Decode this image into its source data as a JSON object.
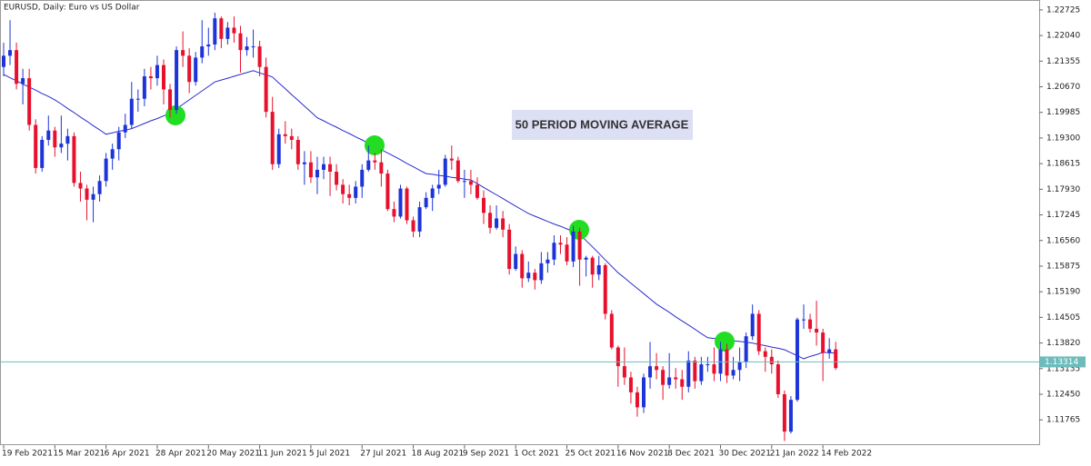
{
  "chart_data": {
    "type": "candlestick",
    "title": "EURUSD, Daily:  Euro vs US Dollar",
    "annotation": "50 PERIOD MOVING AVERAGE",
    "up_color": "#1c34d8",
    "down_color": "#e8112d",
    "categories": [
      "19 Feb 2021",
      null,
      null,
      null,
      null,
      null,
      null,
      null,
      "15 Mar 2021",
      null,
      null,
      null,
      null,
      null,
      null,
      null,
      "6 Apr 2021",
      null,
      null,
      null,
      null,
      null,
      null,
      null,
      "28 Apr 2021",
      null,
      null,
      null,
      null,
      null,
      null,
      null,
      "20 May 2021",
      null,
      null,
      null,
      null,
      null,
      null,
      null,
      "11 Jun 2021",
      null,
      null,
      null,
      null,
      null,
      null,
      null,
      "5 Jul 2021",
      null,
      null,
      null,
      null,
      null,
      null,
      null,
      "27 Jul 2021",
      null,
      null,
      null,
      null,
      null,
      null,
      null,
      "18 Aug 2021",
      null,
      null,
      null,
      null,
      null,
      null,
      null,
      "9 Sep 2021",
      null,
      null,
      null,
      null,
      null,
      null,
      null,
      "1 Oct 2021",
      null,
      null,
      null,
      null,
      null,
      null,
      null,
      "25 Oct 2021",
      null,
      null,
      null,
      null,
      null,
      null,
      null,
      "16 Nov 2021",
      null,
      null,
      null,
      null,
      null,
      null,
      null,
      "8 Dec 2021",
      null,
      null,
      null,
      null,
      null,
      null,
      null,
      "30 Dec 2021",
      null,
      null,
      null,
      null,
      null,
      null,
      null,
      "21 Jan 2022",
      null,
      null,
      null,
      null,
      null,
      null,
      null,
      "14 Feb 2022",
      null,
      null
    ],
    "open": [
      1.212,
      1.215,
      1.2165,
      1.2075,
      1.209,
      1.1965,
      1.185,
      1.1925,
      1.195,
      1.1905,
      1.1915,
      1.1935,
      1.181,
      1.1795,
      1.1765,
      1.178,
      1.1815,
      1.1875,
      1.19,
      1.1945,
      1.1965,
      1.2035,
      1.2035,
      1.2095,
      1.209,
      1.2125,
      1.206,
      1.2005,
      1.2165,
      1.215,
      1.208,
      1.2145,
      1.2175,
      1.218,
      1.225,
      1.2195,
      1.2225,
      1.221,
      1.2165,
      1.2175,
      1.2175,
      1.212,
      1.2,
      1.186,
      1.194,
      1.1935,
      1.1925,
      1.186,
      1.1865,
      1.1825,
      1.1845,
      1.186,
      1.184,
      1.1805,
      1.178,
      1.177,
      1.18,
      1.1845,
      1.187,
      1.1865,
      1.1835,
      1.174,
      1.172,
      1.1795,
      1.171,
      1.168,
      1.1745,
      1.177,
      1.1795,
      1.1805,
      1.1875,
      1.187,
      1.1815,
      1.1815,
      1.1805,
      1.177,
      1.173,
      1.169,
      1.1715,
      1.1685,
      1.158,
      1.162,
      1.1555,
      1.157,
      1.155,
      1.1595,
      1.1605,
      1.165,
      1.1645,
      1.16,
      1.168,
      1.1605,
      1.161,
      1.1565,
      1.159,
      1.146,
      1.137,
      1.132,
      1.129,
      1.125,
      1.121,
      1.129,
      1.132,
      1.131,
      1.127,
      1.129,
      1.1285,
      1.1265,
      1.1335,
      1.128,
      1.1325,
      1.1325,
      1.13,
      1.1365,
      1.1295,
      1.131,
      1.133,
      1.14,
      1.146,
      1.136,
      1.1345,
      1.1325,
      1.1245,
      1.1145,
      1.123,
      1.1445,
      1.1445,
      1.142,
      1.141,
      1.1355,
      1.1365
    ],
    "high": [
      1.2185,
      1.2245,
      1.2185,
      1.2115,
      1.2115,
      1.198,
      1.1935,
      1.199,
      1.196,
      1.199,
      1.1955,
      1.1945,
      1.184,
      1.1805,
      1.18,
      1.183,
      1.189,
      1.1915,
      1.196,
      1.1995,
      1.208,
      1.206,
      1.2115,
      1.212,
      1.215,
      1.214,
      1.2075,
      1.2175,
      1.2215,
      1.217,
      1.216,
      1.2245,
      1.2225,
      1.2265,
      1.2255,
      1.224,
      1.2255,
      1.223,
      1.22,
      1.222,
      1.219,
      1.2145,
      1.204,
      1.1955,
      1.1975,
      1.1955,
      1.1935,
      1.1895,
      1.1895,
      1.188,
      1.188,
      1.188,
      1.186,
      1.182,
      1.1805,
      1.1815,
      1.186,
      1.191,
      1.189,
      1.19,
      1.1845,
      1.176,
      1.1805,
      1.18,
      1.172,
      1.176,
      1.1785,
      1.1805,
      1.1845,
      1.1885,
      1.191,
      1.188,
      1.1845,
      1.1845,
      1.1825,
      1.179,
      1.175,
      1.175,
      1.1735,
      1.17,
      1.164,
      1.163,
      1.16,
      1.158,
      1.1625,
      1.1625,
      1.167,
      1.167,
      1.1665,
      1.1695,
      1.169,
      1.1615,
      1.1615,
      1.1615,
      1.1595,
      1.147,
      1.1375,
      1.137,
      1.1305,
      1.1265,
      1.13,
      1.1385,
      1.1355,
      1.132,
      1.1355,
      1.1315,
      1.131,
      1.136,
      1.1345,
      1.1345,
      1.1345,
      1.137,
      1.1385,
      1.138,
      1.1345,
      1.137,
      1.141,
      1.1485,
      1.147,
      1.137,
      1.1365,
      1.1335,
      1.1255,
      1.124,
      1.145,
      1.1485,
      1.146,
      1.1495,
      1.142,
      1.1395,
      1.1385
    ],
    "low": [
      1.2095,
      1.2125,
      1.206,
      1.202,
      1.195,
      1.1835,
      1.184,
      1.191,
      1.188,
      1.189,
      1.187,
      1.18,
      1.176,
      1.171,
      1.1705,
      1.176,
      1.18,
      1.1845,
      1.187,
      1.193,
      1.1955,
      1.2,
      1.2015,
      1.206,
      1.207,
      1.202,
      1.1985,
      1.1995,
      1.212,
      1.205,
      1.207,
      1.213,
      1.215,
      1.2165,
      1.217,
      1.218,
      1.2185,
      1.2105,
      1.215,
      1.2145,
      1.2095,
      1.1985,
      1.1845,
      1.185,
      1.1915,
      1.19,
      1.1845,
      1.1805,
      1.181,
      1.178,
      1.182,
      1.1775,
      1.179,
      1.1755,
      1.175,
      1.1755,
      1.177,
      1.184,
      1.1845,
      1.18,
      1.1735,
      1.1705,
      1.1715,
      1.17,
      1.1665,
      1.1665,
      1.174,
      1.1735,
      1.178,
      1.18,
      1.1845,
      1.181,
      1.177,
      1.178,
      1.1765,
      1.17,
      1.1675,
      1.1685,
      1.1665,
      1.1565,
      1.1575,
      1.153,
      1.1545,
      1.1525,
      1.154,
      1.157,
      1.159,
      1.162,
      1.159,
      1.1585,
      1.1535,
      1.156,
      1.153,
      1.155,
      1.1445,
      1.1365,
      1.1265,
      1.127,
      1.122,
      1.1185,
      1.1195,
      1.126,
      1.1285,
      1.123,
      1.126,
      1.126,
      1.123,
      1.125,
      1.126,
      1.127,
      1.1305,
      1.128,
      1.128,
      1.1275,
      1.1285,
      1.128,
      1.1315,
      1.139,
      1.135,
      1.1305,
      1.13,
      1.1235,
      1.112,
      1.114,
      1.1225,
      1.142,
      1.141,
      1.1375,
      1.128,
      1.134,
      1.131
    ],
    "close": [
      1.215,
      1.2165,
      1.2075,
      1.209,
      1.1965,
      1.185,
      1.1925,
      1.195,
      1.1905,
      1.1915,
      1.1935,
      1.181,
      1.1795,
      1.1765,
      1.178,
      1.1815,
      1.1875,
      1.19,
      1.1945,
      1.1965,
      1.2035,
      1.2035,
      1.2095,
      1.209,
      1.2125,
      1.206,
      1.2005,
      1.2165,
      1.215,
      1.208,
      1.2145,
      1.2175,
      1.218,
      1.225,
      1.2195,
      1.2225,
      1.221,
      1.2165,
      1.2175,
      1.2175,
      1.212,
      1.2,
      1.186,
      1.194,
      1.1935,
      1.1925,
      1.186,
      1.1865,
      1.1825,
      1.1845,
      1.186,
      1.184,
      1.1805,
      1.178,
      1.177,
      1.18,
      1.1845,
      1.187,
      1.1865,
      1.1835,
      1.174,
      1.172,
      1.1795,
      1.171,
      1.168,
      1.1745,
      1.177,
      1.1795,
      1.1805,
      1.1875,
      1.187,
      1.1815,
      1.1815,
      1.1805,
      1.177,
      1.173,
      1.169,
      1.1715,
      1.1685,
      1.158,
      1.162,
      1.1555,
      1.157,
      1.155,
      1.1595,
      1.1605,
      1.165,
      1.1645,
      1.16,
      1.168,
      1.1605,
      1.161,
      1.1565,
      1.159,
      1.146,
      1.137,
      1.132,
      1.129,
      1.125,
      1.121,
      1.129,
      1.132,
      1.131,
      1.127,
      1.129,
      1.1285,
      1.1265,
      1.1335,
      1.128,
      1.1325,
      1.1325,
      1.13,
      1.1365,
      1.1295,
      1.131,
      1.133,
      1.14,
      1.146,
      1.136,
      1.1345,
      1.1325,
      1.1245,
      1.1145,
      1.123,
      1.1445,
      1.1445,
      1.142,
      1.141,
      1.1355,
      1.1365,
      1.1315
    ],
    "moving_average": {
      "color": "#2a2ad0",
      "values": [
        1.21,
        1.2091,
        1.2083,
        1.2074,
        1.2066,
        1.2058,
        1.2049,
        1.2041,
        1.2032,
        1.2021,
        1.2009,
        1.1998,
        1.1986,
        1.1975,
        1.1963,
        1.1952,
        1.194,
        1.1944,
        1.1948,
        1.1951,
        1.1955,
        1.1962,
        1.1969,
        1.1976,
        1.1982,
        1.1989,
        1.1996,
        1.2008,
        1.202,
        1.2032,
        1.2044,
        1.2056,
        1.2068,
        1.208,
        1.2085,
        1.209,
        1.2095,
        1.21,
        1.2105,
        1.211,
        1.2104,
        1.2099,
        1.2093,
        1.2077,
        1.2062,
        1.2046,
        1.2031,
        1.2015,
        1.2,
        1.1984,
        1.1976,
        1.1967,
        1.1959,
        1.195,
        1.1942,
        1.1933,
        1.1925,
        1.1916,
        1.1908,
        1.1899,
        1.189,
        1.1881,
        1.1872,
        1.1862,
        1.1853,
        1.1844,
        1.1835,
        1.1833,
        1.183,
        1.1828,
        1.1825,
        1.1823,
        1.182,
        1.1818,
        1.1808,
        1.1798,
        1.1788,
        1.1778,
        1.1768,
        1.1758,
        1.1748,
        1.1738,
        1.1728,
        1.1721,
        1.1714,
        1.1707,
        1.17,
        1.1694,
        1.1687,
        1.168,
        1.1673,
        1.1656,
        1.1639,
        1.1622,
        1.1604,
        1.1587,
        1.157,
        1.1556,
        1.1542,
        1.1528,
        1.1514,
        1.15,
        1.1486,
        1.1475,
        1.1464,
        1.1452,
        1.1441,
        1.143,
        1.1419,
        1.1407,
        1.1396,
        1.1394,
        1.1392,
        1.139,
        1.1388,
        1.1386,
        1.1384,
        1.1382,
        1.1378,
        1.1375,
        1.1371,
        1.1368,
        1.1364,
        1.1356,
        1.1348,
        1.134,
        1.1346,
        1.1351,
        1.1357,
        1.1356,
        1.1355
      ]
    },
    "last_price": 1.13314,
    "last_price_color": "#6cbcbc",
    "ylim": [
      1.1109,
      1.2299
    ],
    "yticks": [
      1.22725,
      {
        "value": 1.2204,
        "label": "1.22040"
      },
      1.21355,
      {
        "value": 1.2067,
        "label": "1.20670"
      },
      1.19985,
      {
        "value": 1.193,
        "label": "1.19300"
      },
      1.18615,
      {
        "value": 1.1793,
        "label": "1.17930"
      },
      1.17245,
      {
        "value": 1.1656,
        "label": "1.16560"
      },
      1.15875,
      {
        "value": 1.1519,
        "label": "1.15190"
      },
      1.14505,
      {
        "value": 1.1382,
        "label": "1.13820"
      },
      1.13135,
      {
        "value": 1.1245,
        "label": "1.12450"
      },
      1.11765
    ]
  }
}
